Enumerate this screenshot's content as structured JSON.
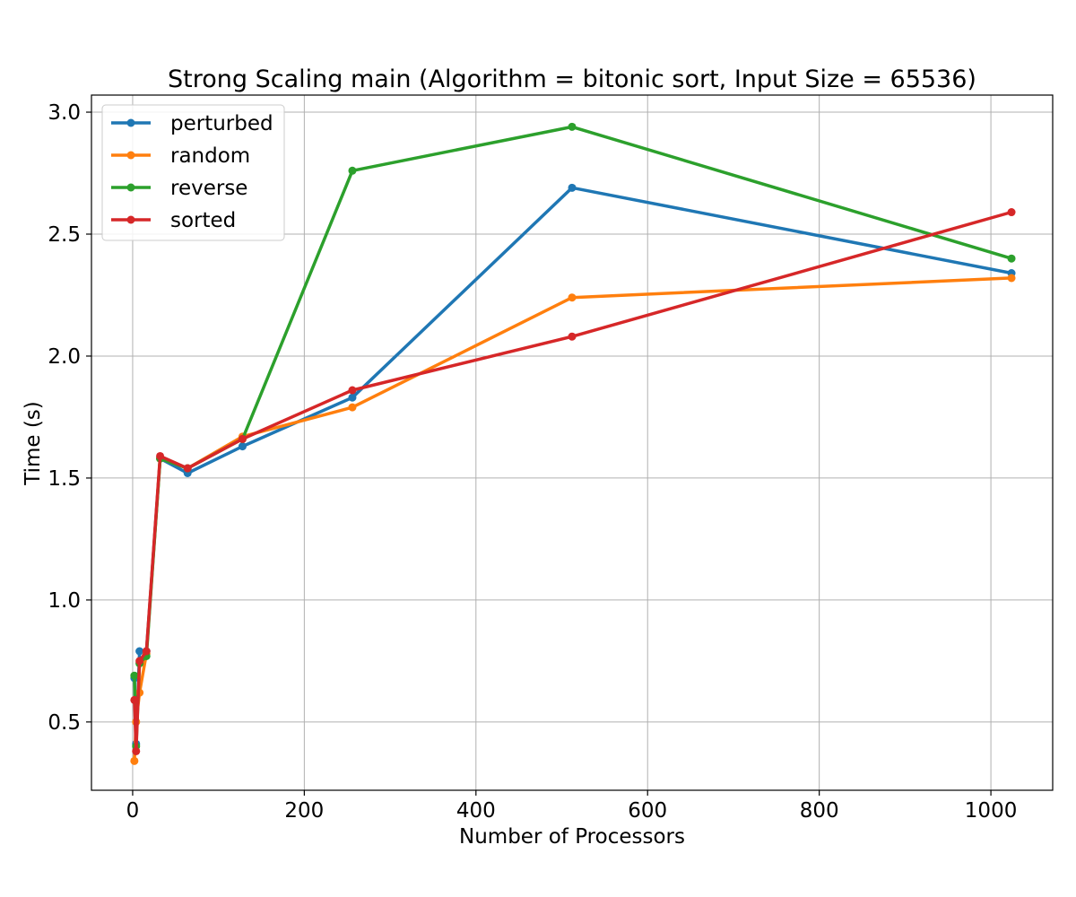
{
  "chart_data": {
    "type": "line",
    "title": "Strong Scaling main (Algorithm = bitonic sort, Input Size = 65536)",
    "xlabel": "Number of Processors",
    "ylabel": "Time (s)",
    "xlim": [
      -48,
      1072
    ],
    "ylim": [
      0.22,
      3.07
    ],
    "xticks": [
      0,
      200,
      400,
      600,
      800,
      1000
    ],
    "xtick_labels": [
      "0",
      "200",
      "400",
      "600",
      "800",
      "1000"
    ],
    "yticks": [
      0.5,
      1.0,
      1.5,
      2.0,
      2.5,
      3.0
    ],
    "ytick_labels": [
      "0.5",
      "1.0",
      "1.5",
      "2.0",
      "2.5",
      "3.0"
    ],
    "grid": true,
    "legend_position": "top-left",
    "x": [
      2,
      4,
      8,
      16,
      32,
      64,
      128,
      256,
      512,
      1024
    ],
    "series": [
      {
        "name": "perturbed",
        "color": "#1f77b4",
        "values": [
          0.68,
          0.41,
          0.79,
          0.79,
          1.58,
          1.52,
          1.63,
          1.83,
          2.69,
          2.34
        ]
      },
      {
        "name": "random",
        "color": "#ff7f0e",
        "values": [
          0.34,
          0.5,
          0.62,
          0.78,
          1.58,
          1.54,
          1.67,
          1.79,
          2.24,
          2.32
        ]
      },
      {
        "name": "reverse",
        "color": "#2ca02c",
        "values": [
          0.69,
          0.4,
          0.74,
          0.77,
          1.58,
          1.54,
          1.66,
          2.76,
          2.94,
          2.4
        ]
      },
      {
        "name": "sorted",
        "color": "#d62728",
        "values": [
          0.59,
          0.38,
          0.75,
          0.79,
          1.59,
          1.54,
          1.66,
          1.86,
          2.08,
          2.59
        ]
      }
    ]
  }
}
